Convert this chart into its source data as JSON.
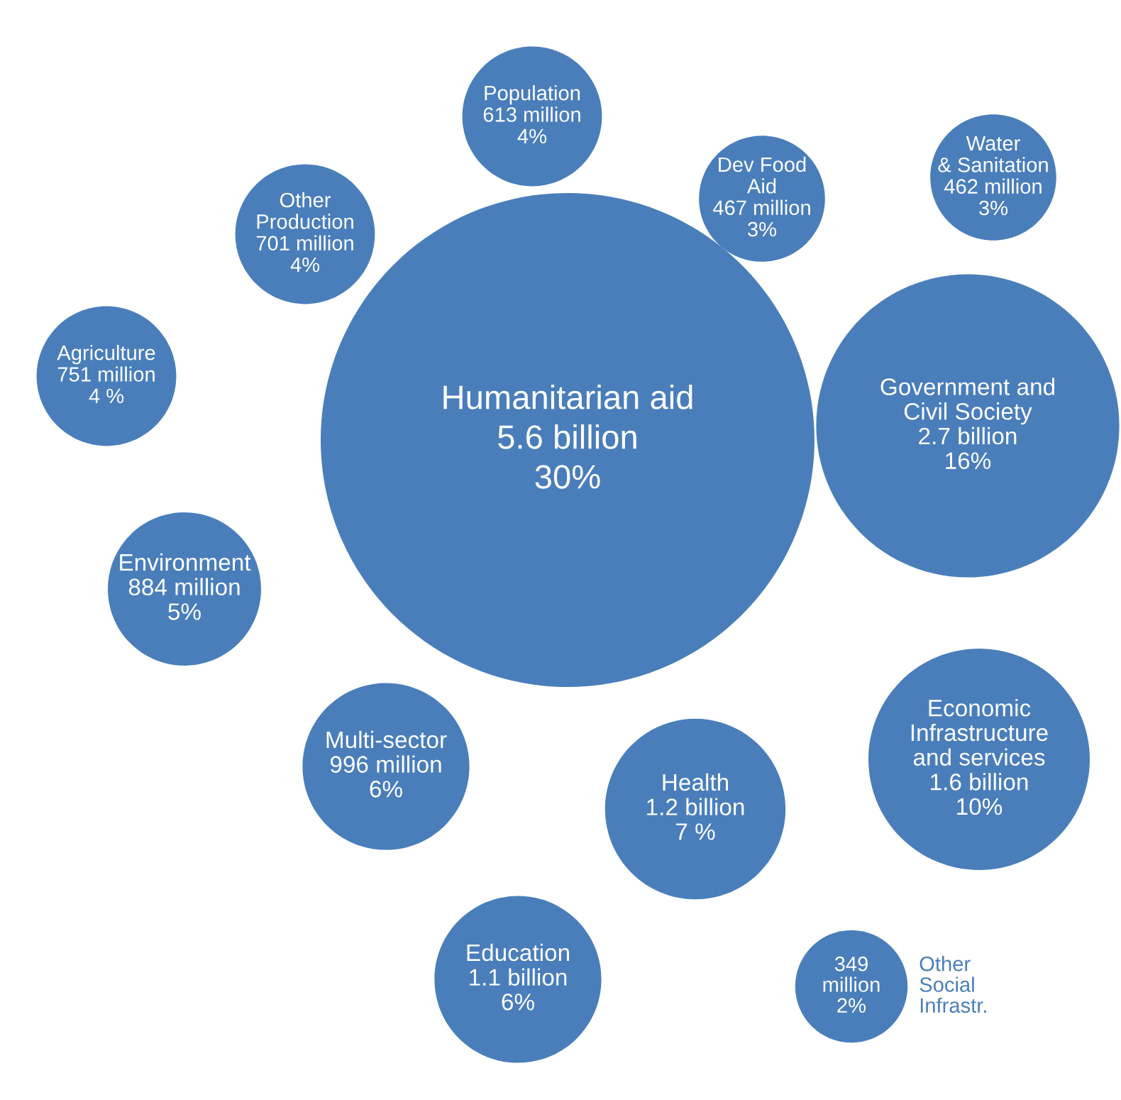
{
  "chart_data": {
    "type": "other",
    "color": "#4a7ebb",
    "categories": [
      "Humanitarian aid",
      "Population",
      "Other\nProduction",
      "Agriculture",
      "Dev Food\nAid",
      "Water\n& Sanitation",
      "Government and\nCivil Society",
      "Environment",
      "Economic\nInfrastructure\nand services",
      "Health",
      "Multi-sector",
      "Education",
      "Other\nSocial\nInfrastr."
    ],
    "values": [
      30,
      4,
      4,
      4,
      3,
      3,
      16,
      5,
      10,
      7,
      6,
      6,
      2
    ],
    "value_labels": [
      "5.6 billion\n30%",
      "613 million\n4%",
      "701 million\n4%",
      "751 million\n4 %",
      "467 million\n3%",
      "462 million\n3%",
      "2.7 billion\n16%",
      "884 million\n5%",
      "1.6 billion\n10%",
      "1.2 billion\n7 %",
      "996 million\n6%",
      "1.1 billion\n6%",
      "349\nmillion\n2%"
    ]
  }
}
